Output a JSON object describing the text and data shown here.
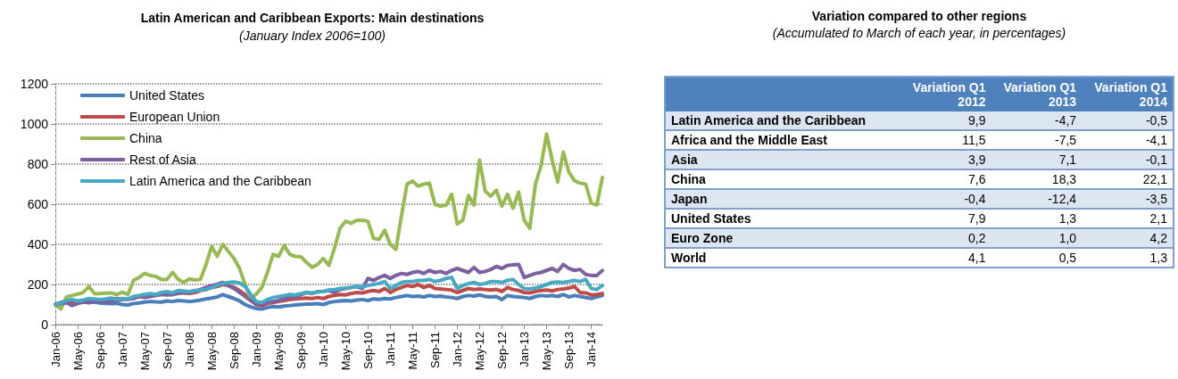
{
  "chart_data": [
    {
      "type": "line",
      "title": "Latin American and Caribbean Exports: Main destinations",
      "subtitle": "(January Index 2006=100)",
      "categories": [
        "Jan-06",
        null,
        null,
        null,
        "May-06",
        null,
        null,
        null,
        "Sep-06",
        null,
        null,
        null,
        "Jan-07",
        null,
        null,
        null,
        "May-07",
        null,
        null,
        null,
        "Sep-07",
        null,
        null,
        null,
        "Jan-08",
        null,
        null,
        null,
        "May-08",
        null,
        null,
        null,
        "Sep-08",
        null,
        null,
        null,
        "Jan-09",
        null,
        null,
        null,
        "May-09",
        null,
        null,
        null,
        "Sep-09",
        null,
        null,
        null,
        "Jan-10",
        null,
        null,
        null,
        "May-10",
        null,
        null,
        null,
        "Sep-10",
        null,
        null,
        null,
        "Jan-11",
        null,
        null,
        null,
        "May-11",
        null,
        null,
        null,
        "Sep-11",
        null,
        null,
        null,
        "Jan-12",
        null,
        null,
        null,
        "May-12",
        null,
        null,
        null,
        "Sep-12",
        null,
        null,
        null,
        "Jan-13",
        null,
        null,
        null,
        "May-13",
        null,
        null,
        null,
        "Sep-13",
        null,
        null,
        null,
        "Jan-14",
        null,
        null
      ],
      "series": [
        {
          "name": "United States",
          "color": "#4a7ebb",
          "values": [
            100,
            105,
            110,
            108,
            110,
            112,
            110,
            112,
            108,
            105,
            104,
            106,
            100,
            98,
            105,
            108,
            112,
            115,
            113,
            112,
            118,
            115,
            120,
            118,
            115,
            118,
            122,
            128,
            132,
            138,
            149,
            140,
            130,
            118,
            100,
            88,
            80,
            78,
            85,
            90,
            88,
            92,
            95,
            98,
            100,
            102,
            102,
            104,
            100,
            110,
            115,
            118,
            120,
            118,
            122,
            125,
            120,
            128,
            126,
            130,
            128,
            135,
            140,
            145,
            140,
            142,
            138,
            145,
            140,
            142,
            138,
            135,
            130,
            140,
            145,
            142,
            148,
            140,
            138,
            140,
            125,
            145,
            140,
            138,
            135,
            130,
            140,
            145,
            142,
            145,
            140,
            150,
            138,
            145,
            140,
            135,
            130,
            138,
            145
          ]
        },
        {
          "name": "European Union",
          "color": "#be4b48",
          "values": [
            100,
            110,
            118,
            112,
            115,
            120,
            118,
            122,
            120,
            118,
            125,
            130,
            128,
            125,
            135,
            140,
            150,
            145,
            148,
            155,
            152,
            150,
            160,
            158,
            155,
            160,
            170,
            175,
            185,
            190,
            200,
            195,
            185,
            170,
            150,
            120,
            100,
            95,
            105,
            110,
            115,
            120,
            125,
            128,
            130,
            132,
            130,
            135,
            130,
            140,
            145,
            150,
            148,
            155,
            160,
            158,
            165,
            170,
            165,
            180,
            160,
            175,
            185,
            195,
            190,
            200,
            185,
            195,
            180,
            178,
            175,
            172,
            160,
            170,
            180,
            175,
            178,
            175,
            172,
            176,
            165,
            185,
            175,
            170,
            160,
            158,
            165,
            170,
            172,
            168,
            175,
            178,
            182,
            190,
            160,
            158,
            148,
            150,
            155
          ]
        },
        {
          "name": "China",
          "color": "#98b954",
          "values": [
            100,
            78,
            138,
            145,
            152,
            160,
            190,
            155,
            155,
            157,
            158,
            150,
            162,
            150,
            220,
            235,
            255,
            245,
            240,
            225,
            225,
            260,
            225,
            210,
            228,
            222,
            225,
            300,
            390,
            340,
            400,
            365,
            330,
            280,
            200,
            130,
            152,
            185,
            260,
            350,
            340,
            395,
            350,
            340,
            338,
            310,
            286,
            300,
            330,
            295,
            380,
            480,
            515,
            505,
            520,
            520,
            515,
            430,
            425,
            470,
            400,
            375,
            540,
            700,
            715,
            690,
            700,
            705,
            600,
            590,
            595,
            650,
            502,
            520,
            643,
            595,
            820,
            665,
            640,
            670,
            590,
            650,
            580,
            660,
            520,
            480,
            700,
            790,
            950,
            820,
            710,
            860,
            760,
            717,
            705,
            700,
            606,
            596,
            733
          ]
        },
        {
          "name": "Rest of Asia",
          "color": "#7d60a0",
          "values": [
            100,
            105,
            110,
            95,
            105,
            112,
            110,
            118,
            115,
            112,
            118,
            120,
            125,
            128,
            130,
            140,
            135,
            140,
            145,
            150,
            148,
            150,
            155,
            160,
            158,
            165,
            175,
            185,
            195,
            200,
            210,
            195,
            180,
            160,
            140,
            120,
            100,
            105,
            110,
            115,
            120,
            130,
            140,
            135,
            150,
            160,
            155,
            165,
            165,
            170,
            160,
            175,
            180,
            185,
            190,
            180,
            230,
            220,
            235,
            245,
            230,
            245,
            255,
            250,
            260,
            265,
            255,
            270,
            260,
            265,
            255,
            270,
            280,
            270,
            260,
            285,
            260,
            265,
            275,
            290,
            280,
            295,
            298,
            300,
            235,
            245,
            255,
            260,
            270,
            280,
            265,
            300,
            280,
            270,
            275,
            250,
            245,
            245,
            270
          ]
        },
        {
          "name": "Latin America and the Caribbean",
          "color": "#46aac5",
          "values": [
            100,
            108,
            120,
            125,
            118,
            122,
            130,
            128,
            125,
            128,
            132,
            125,
            130,
            128,
            140,
            145,
            150,
            155,
            150,
            160,
            165,
            158,
            170,
            168,
            165,
            170,
            172,
            175,
            185,
            195,
            205,
            210,
            212,
            208,
            190,
            150,
            115,
            110,
            125,
            135,
            140,
            145,
            150,
            148,
            155,
            160,
            158,
            162,
            165,
            172,
            175,
            180,
            182,
            185,
            190,
            188,
            195,
            200,
            205,
            215,
            180,
            195,
            210,
            215,
            215,
            220,
            220,
            225,
            215,
            220,
            230,
            235,
            180,
            195,
            205,
            210,
            200,
            205,
            215,
            215,
            210,
            220,
            225,
            200,
            180,
            178,
            182,
            190,
            200,
            210,
            212,
            210,
            215,
            220,
            215,
            225,
            180,
            175,
            195
          ]
        }
      ],
      "ylim": [
        0,
        1200
      ],
      "yticks": [
        0,
        200,
        400,
        600,
        800,
        1000,
        1200
      ],
      "grid": "y",
      "legend": "top left",
      "marker": "none",
      "line_style": "solid"
    },
    {
      "type": "other",
      "title": "Variation compared to other regions",
      "subtitle": "(Accumulated to March of each year, in percentages)",
      "categories": [
        "Latin America and the Caribbean",
        "Africa and the Middle East",
        "Asia",
        "China",
        "Japan",
        "United States",
        "Euro Zone",
        "World"
      ],
      "series": [
        {
          "name": "Variation Q1 2012",
          "values": [
            9.9,
            11.5,
            3.9,
            7.6,
            -0.4,
            7.9,
            0.2,
            4.1
          ],
          "value_labels": [
            "9,9",
            "11,5",
            "3,9",
            "7,6",
            "-0,4",
            "7,9",
            "0,2",
            "4,1"
          ]
        },
        {
          "name": "Variation Q1 2013",
          "values": [
            -4.7,
            -7.5,
            7.1,
            18.3,
            -12.4,
            1.3,
            1.0,
            0.5
          ],
          "value_labels": [
            "-4,7",
            "-7,5",
            "7,1",
            "18,3",
            "-12,4",
            "1,3",
            "1,0",
            "0,5"
          ]
        },
        {
          "name": "Variation Q1 2014",
          "values": [
            -0.5,
            -4.1,
            -0.1,
            22.1,
            -3.5,
            2.1,
            4.2,
            1.3
          ],
          "value_labels": [
            "-0,5",
            "-4,1",
            "-0,1",
            "22,1",
            "-3,5",
            "2,1",
            "4,2",
            "1,3"
          ]
        }
      ]
    }
  ]
}
